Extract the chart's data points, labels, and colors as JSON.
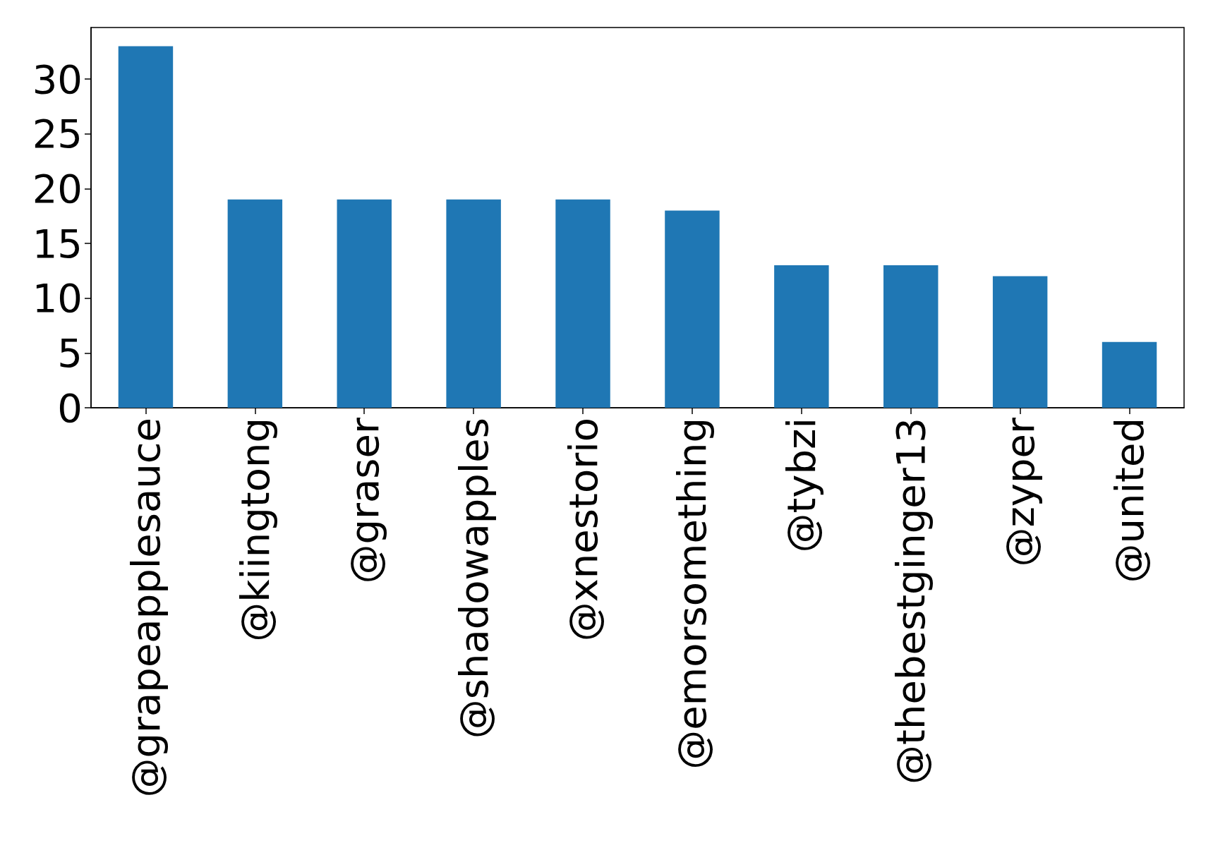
{
  "chart_data": {
    "type": "bar",
    "categories": [
      "@grapeapplesauce",
      "@kiingtong",
      "@graser",
      "@shadowapples",
      "@xnestorio",
      "@emorsomething",
      "@tybzi",
      "@thebestginger13",
      "@zyper",
      "@united"
    ],
    "values": [
      33,
      19,
      19,
      19,
      19,
      18,
      13,
      13,
      12,
      6
    ],
    "color": "#1f77b4",
    "ylim": [
      0,
      34.7
    ],
    "yticks": [
      0,
      5,
      10,
      15,
      20,
      25,
      30
    ],
    "grid": false
  }
}
